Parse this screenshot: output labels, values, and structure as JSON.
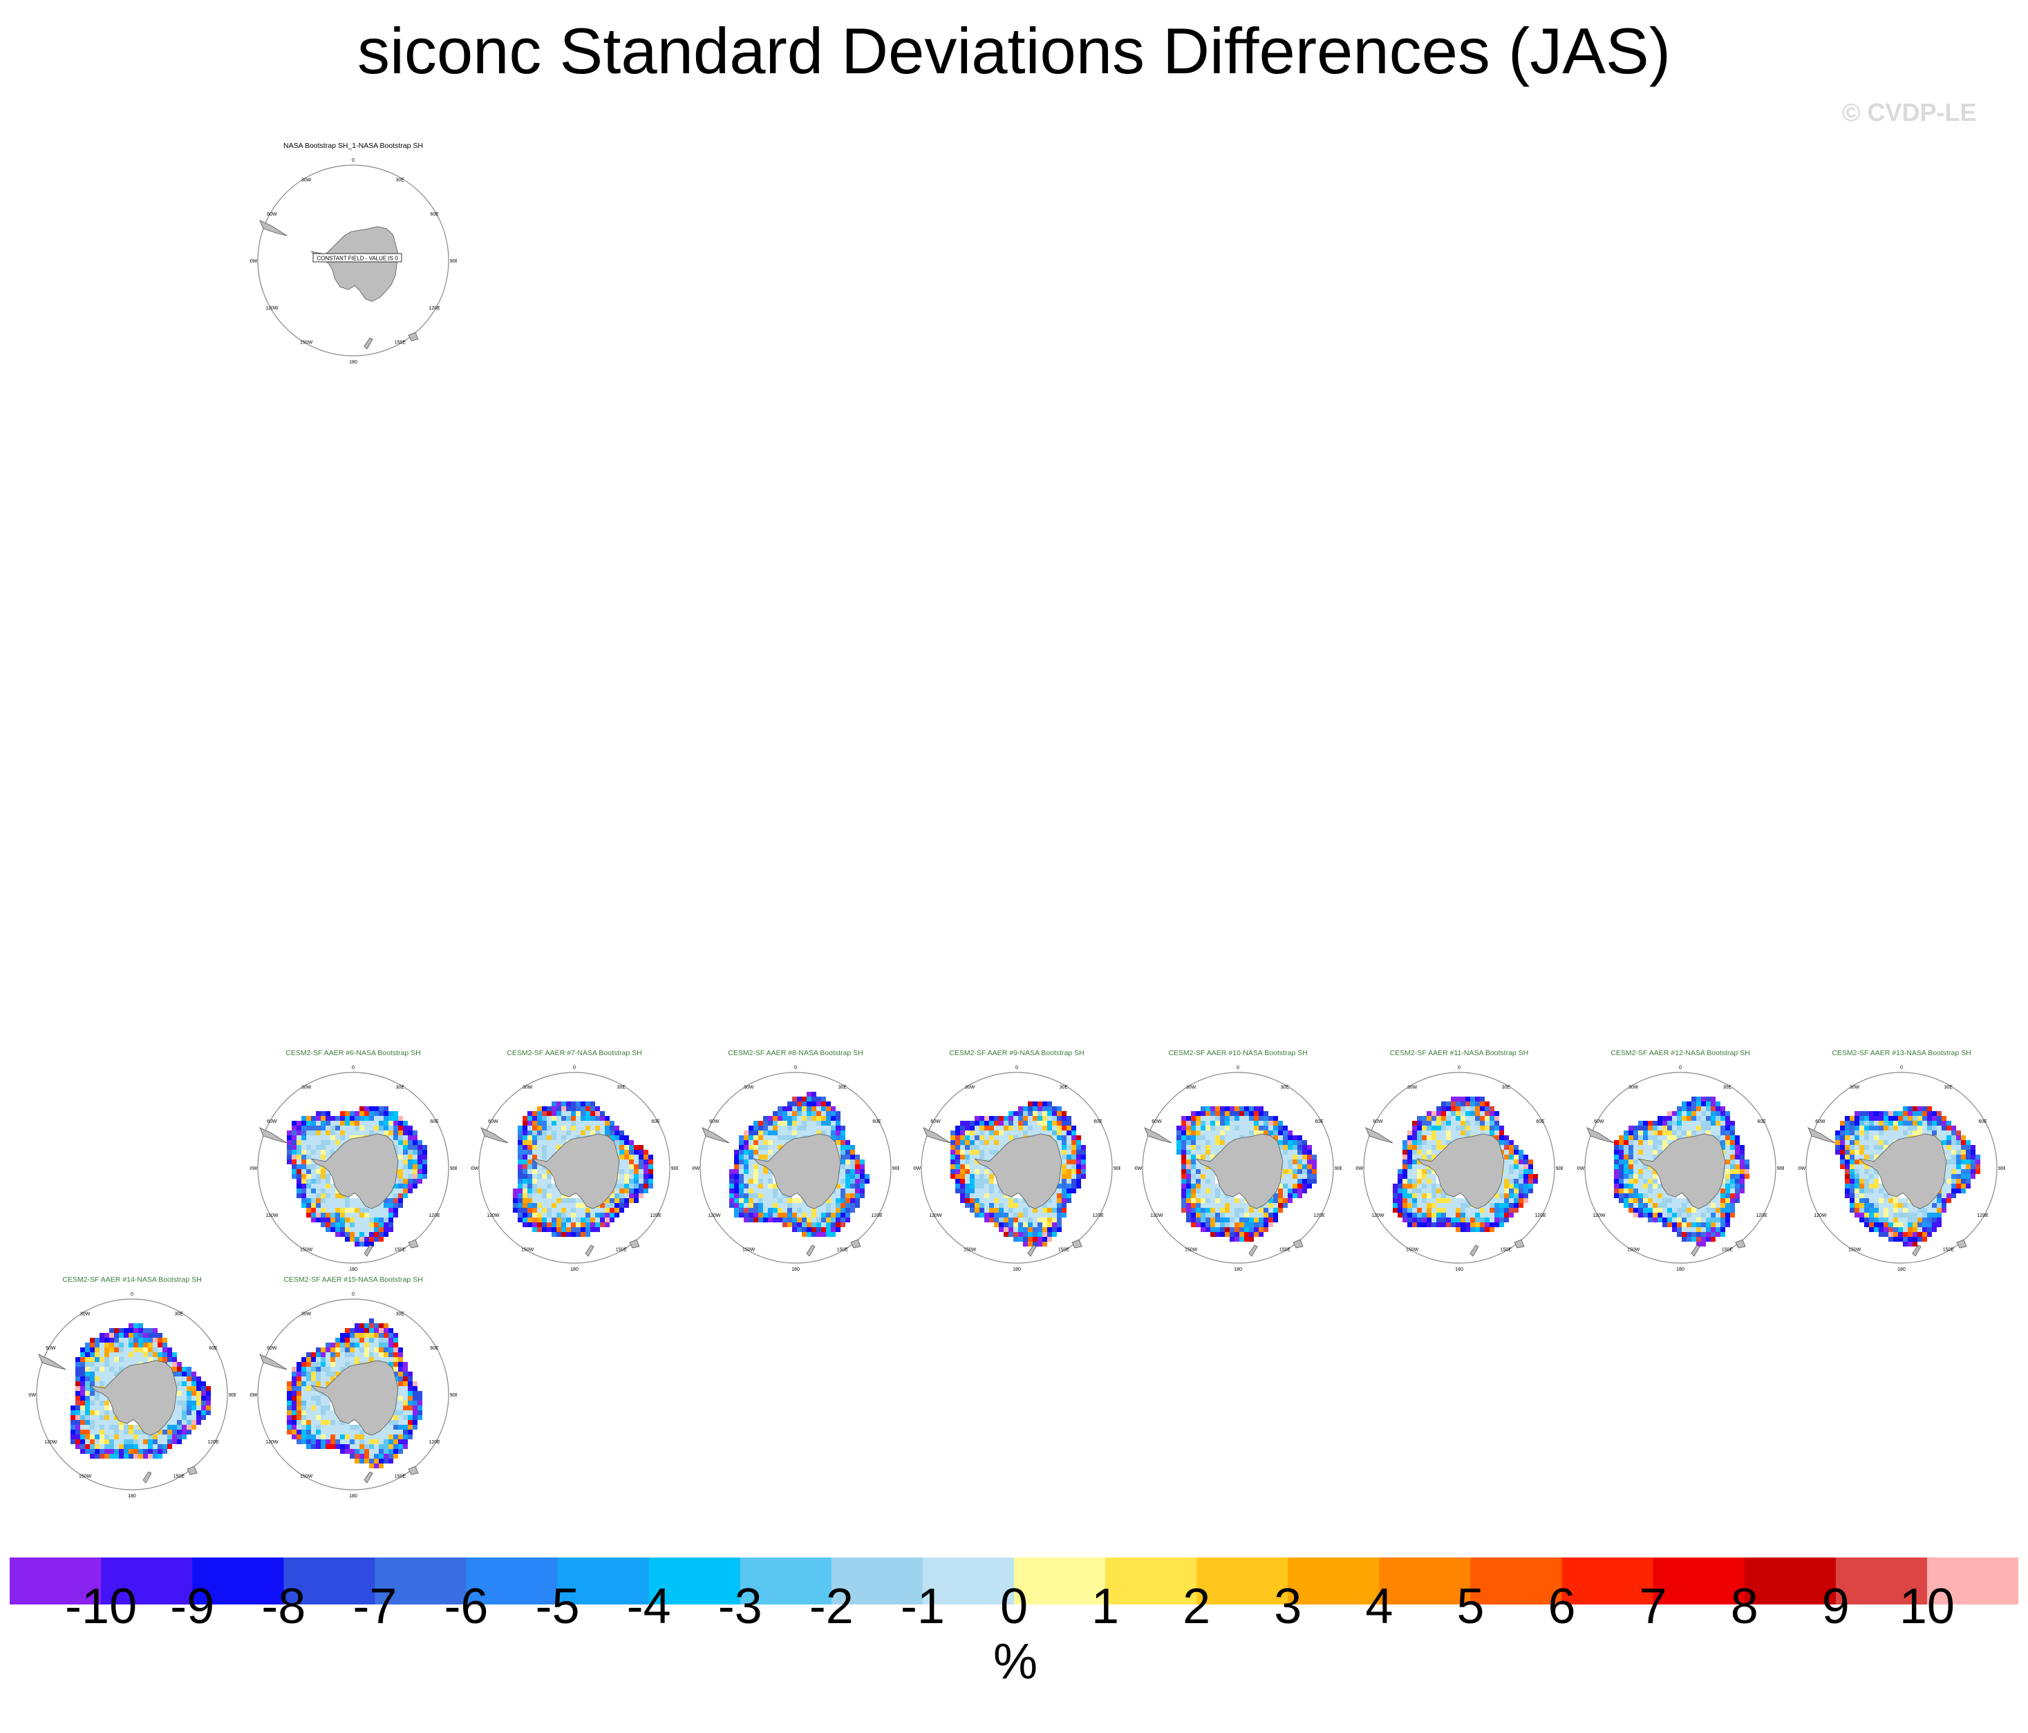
{
  "title": "siconc Standard Deviations Differences (JAS)",
  "watermark": "© CVDP-LE",
  "map_labels": {
    "lon": [
      "0",
      "30E",
      "60E",
      "90E",
      "120E",
      "150E",
      "180",
      "150W",
      "120W",
      "90W",
      "60W",
      "30W"
    ],
    "constant_field_message": "CONSTANT FIELD - VALUE IS 0"
  },
  "colors": {
    "title_obs": "#000000",
    "title_model": "#3a7d3a",
    "land": "#bdbdbd",
    "coast": "#555555",
    "grid_circle": "#888888"
  },
  "chart_data": {
    "type": "heatmap",
    "projection": "south polar stereographic",
    "colorbar": {
      "levels": [
        "-10",
        "-9",
        "-8",
        "-7",
        "-6",
        "-5",
        "-4",
        "-3",
        "-2",
        "-1",
        "0",
        "1",
        "2",
        "3",
        "4",
        "5",
        "6",
        "7",
        "8",
        "9",
        "10"
      ],
      "colors": [
        "#8a22f0",
        "#4314f6",
        "#0e0ef8",
        "#2c4de0",
        "#3a6fe3",
        "#2a85f7",
        "#13a2f8",
        "#00c2fa",
        "#5ac6f2",
        "#9ed3ee",
        "#bfe3f4",
        "#fffa99",
        "#ffe44a",
        "#ffc61d",
        "#ffa500",
        "#ff8400",
        "#ff5a00",
        "#ff2400",
        "#ee0000",
        "#c90000",
        "#dd4444",
        "#ffb2b2"
      ],
      "unit": "%"
    },
    "panels": [
      {
        "title": "NASA Bootstrap SH_1-NASA Bootstrap SH",
        "kind": "constant",
        "value": 0
      },
      {
        "title": "CESM2-SF AAER #6-NASA Bootstrap SH",
        "kind": "difference"
      },
      {
        "title": "CESM2-SF AAER #7-NASA Bootstrap SH",
        "kind": "difference"
      },
      {
        "title": "CESM2-SF AAER #8-NASA Bootstrap SH",
        "kind": "difference"
      },
      {
        "title": "CESM2-SF AAER #9-NASA Bootstrap SH",
        "kind": "difference"
      },
      {
        "title": "CESM2-SF AAER #10-NASA Bootstrap SH",
        "kind": "difference"
      },
      {
        "title": "CESM2-SF AAER #11-NASA Bootstrap SH",
        "kind": "difference"
      },
      {
        "title": "CESM2-SF AAER #12-NASA Bootstrap SH",
        "kind": "difference"
      },
      {
        "title": "CESM2-SF AAER #13-NASA Bootstrap SH",
        "kind": "difference"
      },
      {
        "title": "CESM2-SF AAER #14-NASA Bootstrap SH",
        "kind": "difference"
      },
      {
        "title": "CESM2-SF AAER #15-NASA Bootstrap SH",
        "kind": "difference"
      }
    ]
  }
}
